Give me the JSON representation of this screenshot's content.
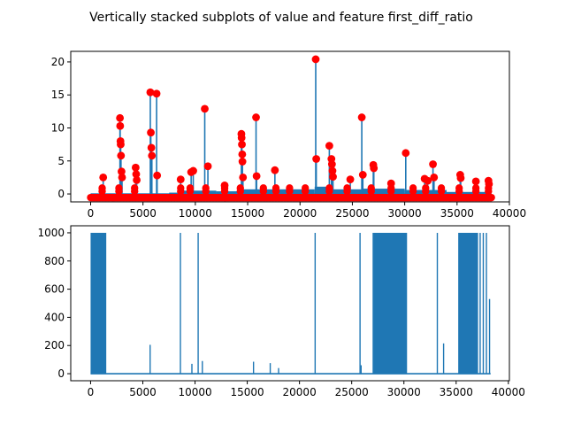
{
  "figure": {
    "title": "Vertically stacked subplots of value and feature first_diff_ratio"
  },
  "chart_data": [
    {
      "type": "line",
      "overlay": "scatter",
      "xlim": [
        -1900,
        40000
      ],
      "ylim": [
        -1.2,
        21.6
      ],
      "xticks": [
        0,
        5000,
        10000,
        15000,
        20000,
        25000,
        30000,
        35000,
        40000
      ],
      "yticks": [
        0,
        5,
        10,
        15,
        20
      ],
      "line_color": "#1f77b4",
      "marker_color": "#ff0000",
      "baseline": -0.5,
      "spikes": [
        {
          "x": 1200,
          "y": 2.5
        },
        {
          "x": 2800,
          "y": 11.5
        },
        {
          "x": 2820,
          "y": 10.3
        },
        {
          "x": 2850,
          "y": 8.0
        },
        {
          "x": 2870,
          "y": 7.5
        },
        {
          "x": 2900,
          "y": 5.8
        },
        {
          "x": 2950,
          "y": 3.4
        },
        {
          "x": 3000,
          "y": 2.5
        },
        {
          "x": 4300,
          "y": 4.0
        },
        {
          "x": 4350,
          "y": 3.0
        },
        {
          "x": 4400,
          "y": 2.1
        },
        {
          "x": 5700,
          "y": 15.4
        },
        {
          "x": 5750,
          "y": 9.3
        },
        {
          "x": 5800,
          "y": 7.0
        },
        {
          "x": 5850,
          "y": 5.8
        },
        {
          "x": 6300,
          "y": 15.2
        },
        {
          "x": 6350,
          "y": 2.8
        },
        {
          "x": 8600,
          "y": 2.2
        },
        {
          "x": 9600,
          "y": 3.3
        },
        {
          "x": 9800,
          "y": 3.5
        },
        {
          "x": 10900,
          "y": 12.9
        },
        {
          "x": 11200,
          "y": 4.2
        },
        {
          "x": 12800,
          "y": 1.3
        },
        {
          "x": 14400,
          "y": 9.1
        },
        {
          "x": 14420,
          "y": 8.5
        },
        {
          "x": 14450,
          "y": 7.5
        },
        {
          "x": 14480,
          "y": 6.0
        },
        {
          "x": 14500,
          "y": 4.9
        },
        {
          "x": 14550,
          "y": 2.5
        },
        {
          "x": 15800,
          "y": 11.6
        },
        {
          "x": 15850,
          "y": 2.7
        },
        {
          "x": 17600,
          "y": 3.6
        },
        {
          "x": 21500,
          "y": 20.4
        },
        {
          "x": 21550,
          "y": 5.3
        },
        {
          "x": 22800,
          "y": 7.3
        },
        {
          "x": 23000,
          "y": 5.3
        },
        {
          "x": 23050,
          "y": 4.5
        },
        {
          "x": 23100,
          "y": 3.5
        },
        {
          "x": 23150,
          "y": 2.6
        },
        {
          "x": 24800,
          "y": 2.2
        },
        {
          "x": 25900,
          "y": 11.6
        },
        {
          "x": 26000,
          "y": 2.9
        },
        {
          "x": 27000,
          "y": 4.4
        },
        {
          "x": 27050,
          "y": 3.9
        },
        {
          "x": 28700,
          "y": 1.6
        },
        {
          "x": 30100,
          "y": 6.2
        },
        {
          "x": 31900,
          "y": 2.3
        },
        {
          "x": 32200,
          "y": 2.0
        },
        {
          "x": 32700,
          "y": 4.5
        },
        {
          "x": 32800,
          "y": 2.5
        },
        {
          "x": 35300,
          "y": 2.9
        },
        {
          "x": 35350,
          "y": 2.4
        },
        {
          "x": 36800,
          "y": 1.9
        },
        {
          "x": 38000,
          "y": 2.0
        },
        {
          "x": 38050,
          "y": 1.5
        }
      ],
      "level_segments": [
        {
          "x0": 0,
          "x1": 7500,
          "y": -0.3
        },
        {
          "x0": 7500,
          "y": 0.0,
          "x1": 8600
        },
        {
          "x0": 8600,
          "x1": 12000,
          "y": 0.3
        },
        {
          "x0": 12000,
          "x1": 14300,
          "y": 0.2
        },
        {
          "x0": 14300,
          "x1": 21400,
          "y": 0.5
        },
        {
          "x0": 21400,
          "x1": 23000,
          "y": 0.9
        },
        {
          "x0": 23000,
          "x1": 26000,
          "y": 0.5
        },
        {
          "x0": 26000,
          "x1": 30000,
          "y": 0.6
        },
        {
          "x0": 30000,
          "x1": 34000,
          "y": 0.4
        },
        {
          "x0": 34000,
          "x1": 38200,
          "y": 0.1
        }
      ]
    },
    {
      "type": "line",
      "xlim": [
        -1900,
        40100
      ],
      "ylim": [
        -50,
        1050
      ],
      "xticks": [
        0,
        5000,
        10000,
        15000,
        20000,
        25000,
        30000,
        35000,
        40000
      ],
      "yticks": [
        0,
        200,
        400,
        600,
        800,
        1000
      ],
      "line_color": "#1f77b4",
      "baseline": 0,
      "dense_blocks": [
        {
          "x0": 0,
          "x1": 1500,
          "y": 1000
        },
        {
          "x0": 27000,
          "x1": 30300,
          "y": 1000
        },
        {
          "x0": 35200,
          "x1": 37100,
          "y": 1000
        }
      ],
      "spikes": [
        {
          "x": 5700,
          "y": 205
        },
        {
          "x": 8600,
          "y": 1000
        },
        {
          "x": 9700,
          "y": 70
        },
        {
          "x": 10300,
          "y": 1000
        },
        {
          "x": 10700,
          "y": 90
        },
        {
          "x": 15600,
          "y": 85
        },
        {
          "x": 17200,
          "y": 75
        },
        {
          "x": 18000,
          "y": 40
        },
        {
          "x": 21500,
          "y": 1000
        },
        {
          "x": 25800,
          "y": 1000
        },
        {
          "x": 25900,
          "y": 60
        },
        {
          "x": 33200,
          "y": 1000
        },
        {
          "x": 33800,
          "y": 215
        },
        {
          "x": 37300,
          "y": 1000
        },
        {
          "x": 37600,
          "y": 1000
        },
        {
          "x": 37900,
          "y": 1000
        },
        {
          "x": 38200,
          "y": 530
        }
      ]
    }
  ]
}
